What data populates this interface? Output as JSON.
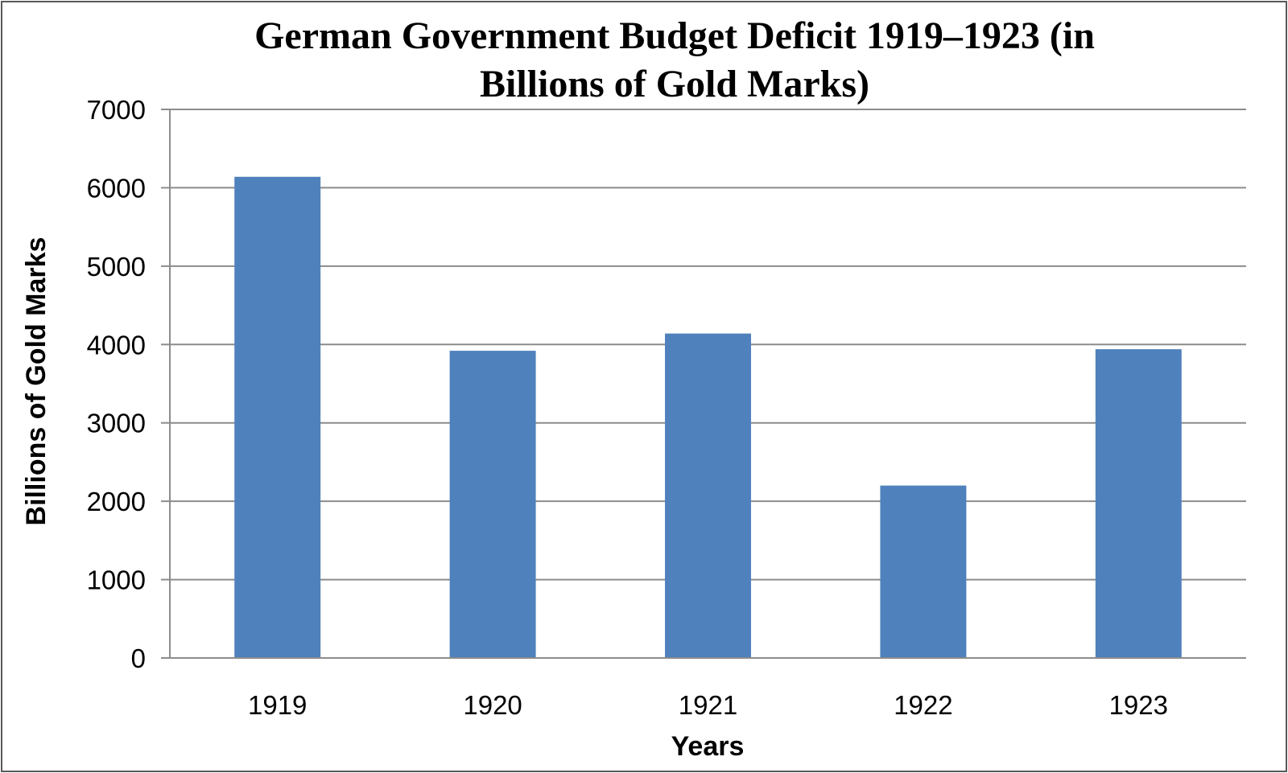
{
  "chart_data": {
    "type": "bar",
    "title": "German Government Budget Deficit 1919–1923 (in Billions of Gold Marks)",
    "title_lines": [
      "German Government Budget Deficit 1919–1923 (in",
      "Billions of Gold Marks)"
    ],
    "categories": [
      "1919",
      "1920",
      "1921",
      "1922",
      "1923"
    ],
    "series": [
      {
        "name": "Budget Deficit",
        "values": [
          6140,
          3920,
          4140,
          2200,
          3940
        ]
      }
    ],
    "xlabel": "Years",
    "ylabel": "Billions of Gold Marks",
    "ylim": [
      0,
      7000
    ],
    "yticks": [
      "0",
      "1000",
      "2000",
      "3000",
      "4000",
      "5000",
      "6000",
      "7000"
    ],
    "grid": true,
    "legend": "none",
    "bar_color": "#4f81bd",
    "grid_color": "#8c8c8c"
  }
}
